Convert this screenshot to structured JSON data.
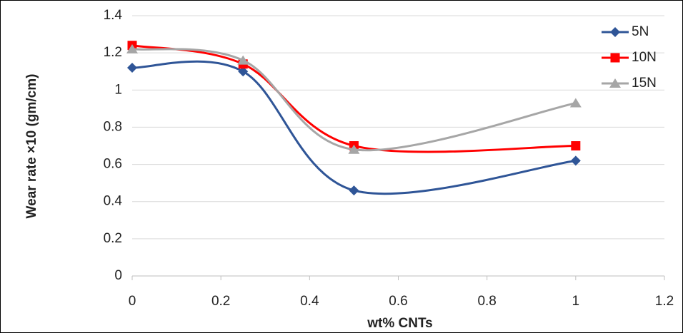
{
  "chart_data": {
    "type": "line",
    "smooth": true,
    "x_label": "wt% CNTs",
    "y_label": "Wear rate ×10 (gm/cm)",
    "x": [
      0,
      0.25,
      0.5,
      1
    ],
    "series": [
      {
        "name": "5N",
        "color": "#2f5597",
        "marker": "diamond",
        "values": [
          1.12,
          1.1,
          0.46,
          0.62
        ]
      },
      {
        "name": "10N",
        "color": "#ff0000",
        "marker": "square",
        "values": [
          1.24,
          1.14,
          0.7,
          0.7
        ]
      },
      {
        "name": "15N",
        "color": "#a6a6a6",
        "marker": "triangle",
        "values": [
          1.22,
          1.16,
          0.68,
          0.93
        ]
      }
    ],
    "xlim": [
      0,
      1.2
    ],
    "xticks": [
      0,
      0.2,
      0.4,
      0.6,
      0.8,
      1,
      1.2
    ],
    "ylim": [
      0,
      1.4
    ],
    "yticks": [
      0,
      0.2,
      0.4,
      0.6,
      0.8,
      1,
      1.2,
      1.4
    ],
    "grid": true,
    "legend": "top-right"
  }
}
